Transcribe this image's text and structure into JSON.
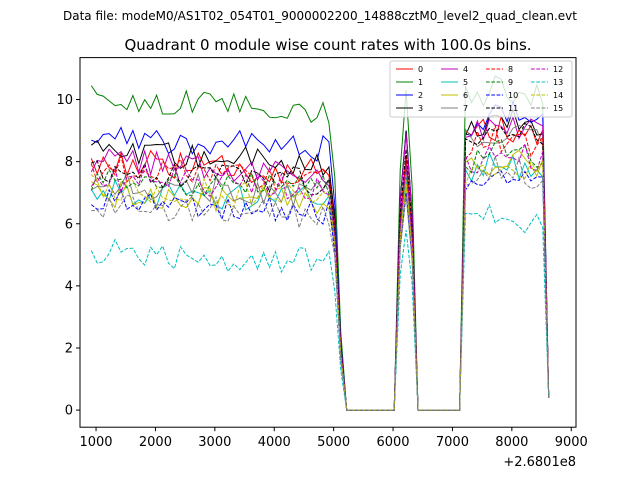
{
  "chart_data": {
    "type": "line",
    "suptitle": "Data file: modeM0/AS1T02_054T01_9000002200_14888cztM0_level2_quad_clean.evt",
    "title": "Quadrant 0 module wise count rates with 100.0s bins.",
    "xlabel": "",
    "ylabel": "",
    "x_offset_label": "+2.6801e8",
    "xlim": [
      730,
      9080
    ],
    "ylim": [
      -0.55,
      11.35
    ],
    "xticks": [
      1000,
      2000,
      3000,
      4000,
      5000,
      6000,
      7000,
      8000,
      9000
    ],
    "xtick_labels": [
      "1000",
      "2000",
      "3000",
      "4000",
      "5000",
      "6000",
      "7000",
      "8000",
      "9000"
    ],
    "yticks": [
      0,
      2,
      4,
      6,
      8,
      10
    ],
    "ytick_labels": [
      "0",
      "2",
      "4",
      "6",
      "8",
      "10"
    ],
    "grid": false,
    "legend_position": "top-right",
    "segments": [
      [
        920,
        4920
      ],
      [
        6120,
        6320
      ],
      [
        7220,
        8520
      ]
    ],
    "sample_step": 100,
    "drop_start": 5020,
    "zero_window": [
      5220,
      7120
    ],
    "peak_x": 6220,
    "final_x": 8620,
    "series": [
      {
        "name": "0",
        "color": "#ff0000",
        "dash": "solid",
        "level": 8.0,
        "peak": 8.2,
        "end": 0.4,
        "post_level": 8.7
      },
      {
        "name": "1",
        "color": "#008000",
        "dash": "solid",
        "level": 10.0,
        "peak": 10.3,
        "end": 0.4,
        "post_level": 10.0
      },
      {
        "name": "2",
        "color": "#0000ff",
        "dash": "solid",
        "level": 8.8,
        "peak": 9.0,
        "end": 0.4,
        "post_level": 9.2
      },
      {
        "name": "3",
        "color": "#000000",
        "dash": "solid",
        "level": 8.3,
        "peak": 9.0,
        "end": 0.4,
        "post_level": 9.0
      },
      {
        "name": "4",
        "color": "#c000c0",
        "dash": "solid",
        "level": 8.0,
        "peak": 8.9,
        "end": 0.4,
        "post_level": 8.8
      },
      {
        "name": "5",
        "color": "#00bfbf",
        "dash": "solid",
        "level": 7.1,
        "peak": 7.5,
        "end": 0.4,
        "post_level": 7.6
      },
      {
        "name": "6",
        "color": "#bfbf00",
        "dash": "solid",
        "level": 7.0,
        "peak": 7.2,
        "end": 0.4,
        "post_level": 7.7
      },
      {
        "name": "7",
        "color": "#808080",
        "dash": "solid",
        "level": 7.3,
        "peak": 7.8,
        "end": 0.4,
        "post_level": 8.6
      },
      {
        "name": "8",
        "color": "#ff0000",
        "dash": "dashed",
        "level": 7.8,
        "peak": 8.0,
        "end": 0.4,
        "post_level": 8.4
      },
      {
        "name": "9",
        "color": "#008000",
        "dash": "dashed",
        "level": 7.5,
        "peak": 7.9,
        "end": 0.4,
        "post_level": 8.0
      },
      {
        "name": "10",
        "color": "#0000ff",
        "dash": "dashed",
        "level": 6.7,
        "peak": 7.0,
        "end": 0.4,
        "post_level": 7.1
      },
      {
        "name": "11",
        "color": "#000000",
        "dash": "dashed",
        "level": 7.7,
        "peak": 8.4,
        "end": 0.4,
        "post_level": 8.6
      },
      {
        "name": "12",
        "color": "#c000c0",
        "dash": "dashed",
        "level": 7.5,
        "peak": 7.9,
        "end": 0.4,
        "post_level": 7.9
      },
      {
        "name": "13",
        "color": "#00bfbf",
        "dash": "dashed",
        "level": 5.1,
        "peak": 5.8,
        "end": 0.4,
        "post_level": 5.9
      },
      {
        "name": "14",
        "color": "#bfbf00",
        "dash": "dashed",
        "level": 7.2,
        "peak": 7.4,
        "end": 0.4,
        "post_level": 7.6
      },
      {
        "name": "15",
        "color": "#808080",
        "dash": "dashed",
        "level": 6.6,
        "peak": 6.9,
        "end": 0.4,
        "post_level": 7.4
      }
    ]
  }
}
